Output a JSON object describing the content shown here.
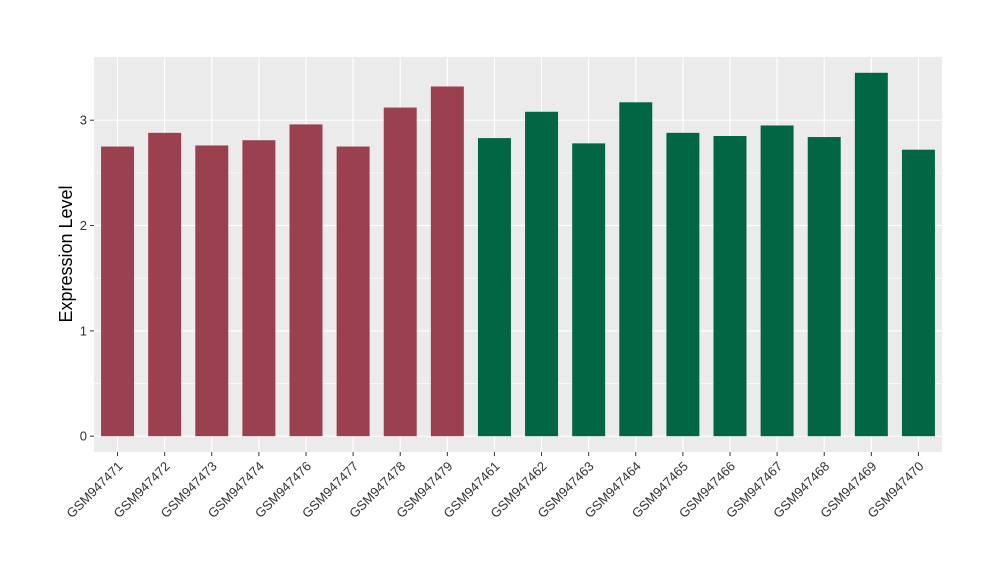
{
  "chart_data": {
    "type": "bar",
    "ylabel": "Expression Level",
    "xlabel": "",
    "ylim": [
      -0.15,
      3.6
    ],
    "yticks": [
      0,
      1,
      2,
      3
    ],
    "grid": true,
    "background": "#EBEBEB",
    "categories": [
      "GSM947471",
      "GSM947472",
      "GSM947473",
      "GSM947474",
      "GSM947476",
      "GSM947477",
      "GSM947478",
      "GSM947479",
      "GSM947461",
      "GSM947462",
      "GSM947463",
      "GSM947464",
      "GSM947465",
      "GSM947466",
      "GSM947467",
      "GSM947468",
      "GSM947469",
      "GSM947470"
    ],
    "values": [
      2.75,
      2.88,
      2.76,
      2.81,
      2.96,
      2.75,
      3.12,
      3.32,
      2.83,
      3.08,
      2.78,
      3.17,
      2.88,
      2.85,
      2.95,
      2.84,
      3.45,
      2.72
    ],
    "bar_colors": [
      "#9A404F",
      "#9A404F",
      "#9A404F",
      "#9A404F",
      "#9A404F",
      "#9A404F",
      "#9A404F",
      "#9A404F",
      "#006644",
      "#006644",
      "#006644",
      "#006644",
      "#006644",
      "#006644",
      "#006644",
      "#006644",
      "#006644",
      "#006644"
    ]
  }
}
